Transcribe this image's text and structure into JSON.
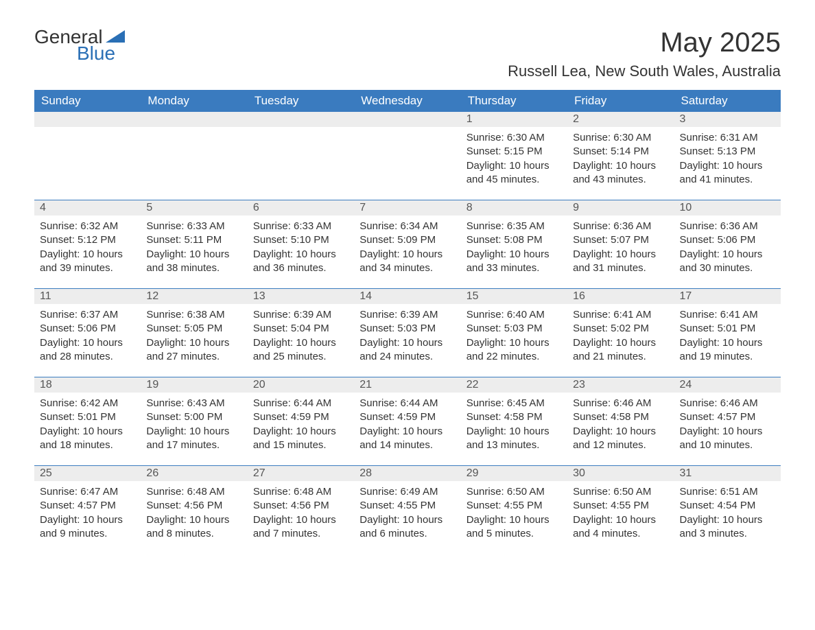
{
  "logo": {
    "word1": "General",
    "word2": "Blue"
  },
  "header": {
    "month_title": "May 2025",
    "location": "Russell Lea, New South Wales, Australia"
  },
  "colors": {
    "header_bar": "#3a7bbf",
    "header_text": "#ffffff",
    "week_divider": "#3a7bbf",
    "daynum_bg": "#ededed",
    "body_text": "#333333",
    "logo_blue": "#2a6fb5",
    "background": "#ffffff"
  },
  "typography": {
    "month_title_size": 40,
    "location_size": 22,
    "dayhead_size": 17,
    "daynum_size": 16,
    "daydata_size": 15,
    "logo_size": 28,
    "font_family": "Arial"
  },
  "day_labels": [
    "Sunday",
    "Monday",
    "Tuesday",
    "Wednesday",
    "Thursday",
    "Friday",
    "Saturday"
  ],
  "weeks": [
    [
      {
        "n": "",
        "sunrise": "",
        "sunset": "",
        "daylight": ""
      },
      {
        "n": "",
        "sunrise": "",
        "sunset": "",
        "daylight": ""
      },
      {
        "n": "",
        "sunrise": "",
        "sunset": "",
        "daylight": ""
      },
      {
        "n": "",
        "sunrise": "",
        "sunset": "",
        "daylight": ""
      },
      {
        "n": "1",
        "sunrise": "Sunrise: 6:30 AM",
        "sunset": "Sunset: 5:15 PM",
        "daylight": "Daylight: 10 hours and 45 minutes."
      },
      {
        "n": "2",
        "sunrise": "Sunrise: 6:30 AM",
        "sunset": "Sunset: 5:14 PM",
        "daylight": "Daylight: 10 hours and 43 minutes."
      },
      {
        "n": "3",
        "sunrise": "Sunrise: 6:31 AM",
        "sunset": "Sunset: 5:13 PM",
        "daylight": "Daylight: 10 hours and 41 minutes."
      }
    ],
    [
      {
        "n": "4",
        "sunrise": "Sunrise: 6:32 AM",
        "sunset": "Sunset: 5:12 PM",
        "daylight": "Daylight: 10 hours and 39 minutes."
      },
      {
        "n": "5",
        "sunrise": "Sunrise: 6:33 AM",
        "sunset": "Sunset: 5:11 PM",
        "daylight": "Daylight: 10 hours and 38 minutes."
      },
      {
        "n": "6",
        "sunrise": "Sunrise: 6:33 AM",
        "sunset": "Sunset: 5:10 PM",
        "daylight": "Daylight: 10 hours and 36 minutes."
      },
      {
        "n": "7",
        "sunrise": "Sunrise: 6:34 AM",
        "sunset": "Sunset: 5:09 PM",
        "daylight": "Daylight: 10 hours and 34 minutes."
      },
      {
        "n": "8",
        "sunrise": "Sunrise: 6:35 AM",
        "sunset": "Sunset: 5:08 PM",
        "daylight": "Daylight: 10 hours and 33 minutes."
      },
      {
        "n": "9",
        "sunrise": "Sunrise: 6:36 AM",
        "sunset": "Sunset: 5:07 PM",
        "daylight": "Daylight: 10 hours and 31 minutes."
      },
      {
        "n": "10",
        "sunrise": "Sunrise: 6:36 AM",
        "sunset": "Sunset: 5:06 PM",
        "daylight": "Daylight: 10 hours and 30 minutes."
      }
    ],
    [
      {
        "n": "11",
        "sunrise": "Sunrise: 6:37 AM",
        "sunset": "Sunset: 5:06 PM",
        "daylight": "Daylight: 10 hours and 28 minutes."
      },
      {
        "n": "12",
        "sunrise": "Sunrise: 6:38 AM",
        "sunset": "Sunset: 5:05 PM",
        "daylight": "Daylight: 10 hours and 27 minutes."
      },
      {
        "n": "13",
        "sunrise": "Sunrise: 6:39 AM",
        "sunset": "Sunset: 5:04 PM",
        "daylight": "Daylight: 10 hours and 25 minutes."
      },
      {
        "n": "14",
        "sunrise": "Sunrise: 6:39 AM",
        "sunset": "Sunset: 5:03 PM",
        "daylight": "Daylight: 10 hours and 24 minutes."
      },
      {
        "n": "15",
        "sunrise": "Sunrise: 6:40 AM",
        "sunset": "Sunset: 5:03 PM",
        "daylight": "Daylight: 10 hours and 22 minutes."
      },
      {
        "n": "16",
        "sunrise": "Sunrise: 6:41 AM",
        "sunset": "Sunset: 5:02 PM",
        "daylight": "Daylight: 10 hours and 21 minutes."
      },
      {
        "n": "17",
        "sunrise": "Sunrise: 6:41 AM",
        "sunset": "Sunset: 5:01 PM",
        "daylight": "Daylight: 10 hours and 19 minutes."
      }
    ],
    [
      {
        "n": "18",
        "sunrise": "Sunrise: 6:42 AM",
        "sunset": "Sunset: 5:01 PM",
        "daylight": "Daylight: 10 hours and 18 minutes."
      },
      {
        "n": "19",
        "sunrise": "Sunrise: 6:43 AM",
        "sunset": "Sunset: 5:00 PM",
        "daylight": "Daylight: 10 hours and 17 minutes."
      },
      {
        "n": "20",
        "sunrise": "Sunrise: 6:44 AM",
        "sunset": "Sunset: 4:59 PM",
        "daylight": "Daylight: 10 hours and 15 minutes."
      },
      {
        "n": "21",
        "sunrise": "Sunrise: 6:44 AM",
        "sunset": "Sunset: 4:59 PM",
        "daylight": "Daylight: 10 hours and 14 minutes."
      },
      {
        "n": "22",
        "sunrise": "Sunrise: 6:45 AM",
        "sunset": "Sunset: 4:58 PM",
        "daylight": "Daylight: 10 hours and 13 minutes."
      },
      {
        "n": "23",
        "sunrise": "Sunrise: 6:46 AM",
        "sunset": "Sunset: 4:58 PM",
        "daylight": "Daylight: 10 hours and 12 minutes."
      },
      {
        "n": "24",
        "sunrise": "Sunrise: 6:46 AM",
        "sunset": "Sunset: 4:57 PM",
        "daylight": "Daylight: 10 hours and 10 minutes."
      }
    ],
    [
      {
        "n": "25",
        "sunrise": "Sunrise: 6:47 AM",
        "sunset": "Sunset: 4:57 PM",
        "daylight": "Daylight: 10 hours and 9 minutes."
      },
      {
        "n": "26",
        "sunrise": "Sunrise: 6:48 AM",
        "sunset": "Sunset: 4:56 PM",
        "daylight": "Daylight: 10 hours and 8 minutes."
      },
      {
        "n": "27",
        "sunrise": "Sunrise: 6:48 AM",
        "sunset": "Sunset: 4:56 PM",
        "daylight": "Daylight: 10 hours and 7 minutes."
      },
      {
        "n": "28",
        "sunrise": "Sunrise: 6:49 AM",
        "sunset": "Sunset: 4:55 PM",
        "daylight": "Daylight: 10 hours and 6 minutes."
      },
      {
        "n": "29",
        "sunrise": "Sunrise: 6:50 AM",
        "sunset": "Sunset: 4:55 PM",
        "daylight": "Daylight: 10 hours and 5 minutes."
      },
      {
        "n": "30",
        "sunrise": "Sunrise: 6:50 AM",
        "sunset": "Sunset: 4:55 PM",
        "daylight": "Daylight: 10 hours and 4 minutes."
      },
      {
        "n": "31",
        "sunrise": "Sunrise: 6:51 AM",
        "sunset": "Sunset: 4:54 PM",
        "daylight": "Daylight: 10 hours and 3 minutes."
      }
    ]
  ]
}
